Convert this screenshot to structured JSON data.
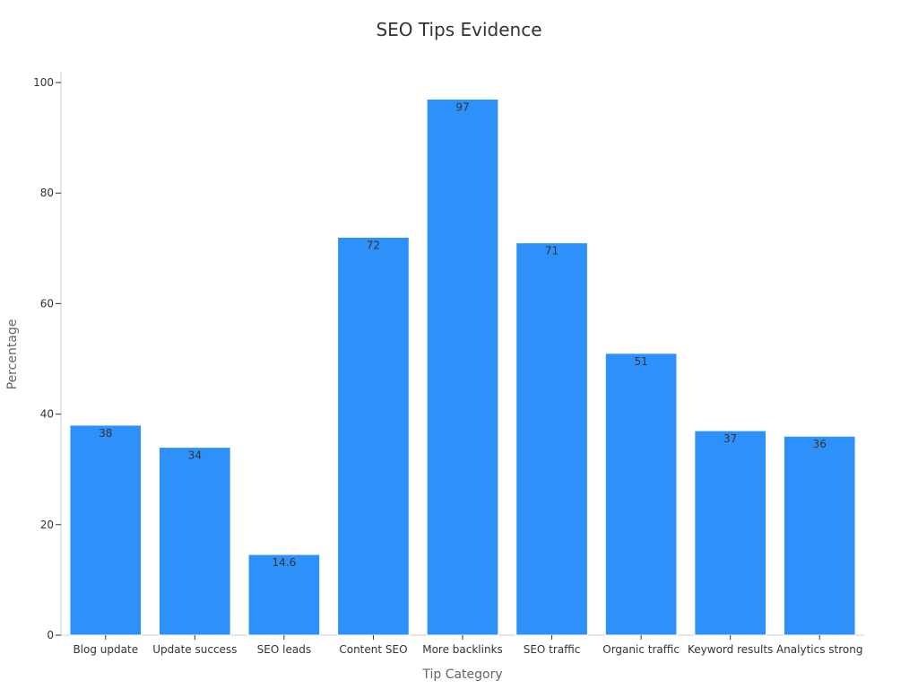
{
  "chart_data": {
    "type": "bar",
    "title": "SEO Tips Evidence",
    "xlabel": "Tip Category",
    "ylabel": "Percentage",
    "categories": [
      "Blog update",
      "Update success",
      "SEO leads",
      "Content SEO",
      "More backlinks",
      "SEO traffic",
      "Organic traffic",
      "Keyword results",
      "Analytics strong"
    ],
    "values": [
      38,
      34,
      14.6,
      72,
      97,
      71,
      51,
      37,
      36
    ],
    "ylim": [
      0,
      100
    ],
    "yticks": [
      0,
      20,
      40,
      60,
      80,
      100
    ],
    "grid": false,
    "legend": false,
    "bar_color": "#2e91fa"
  }
}
